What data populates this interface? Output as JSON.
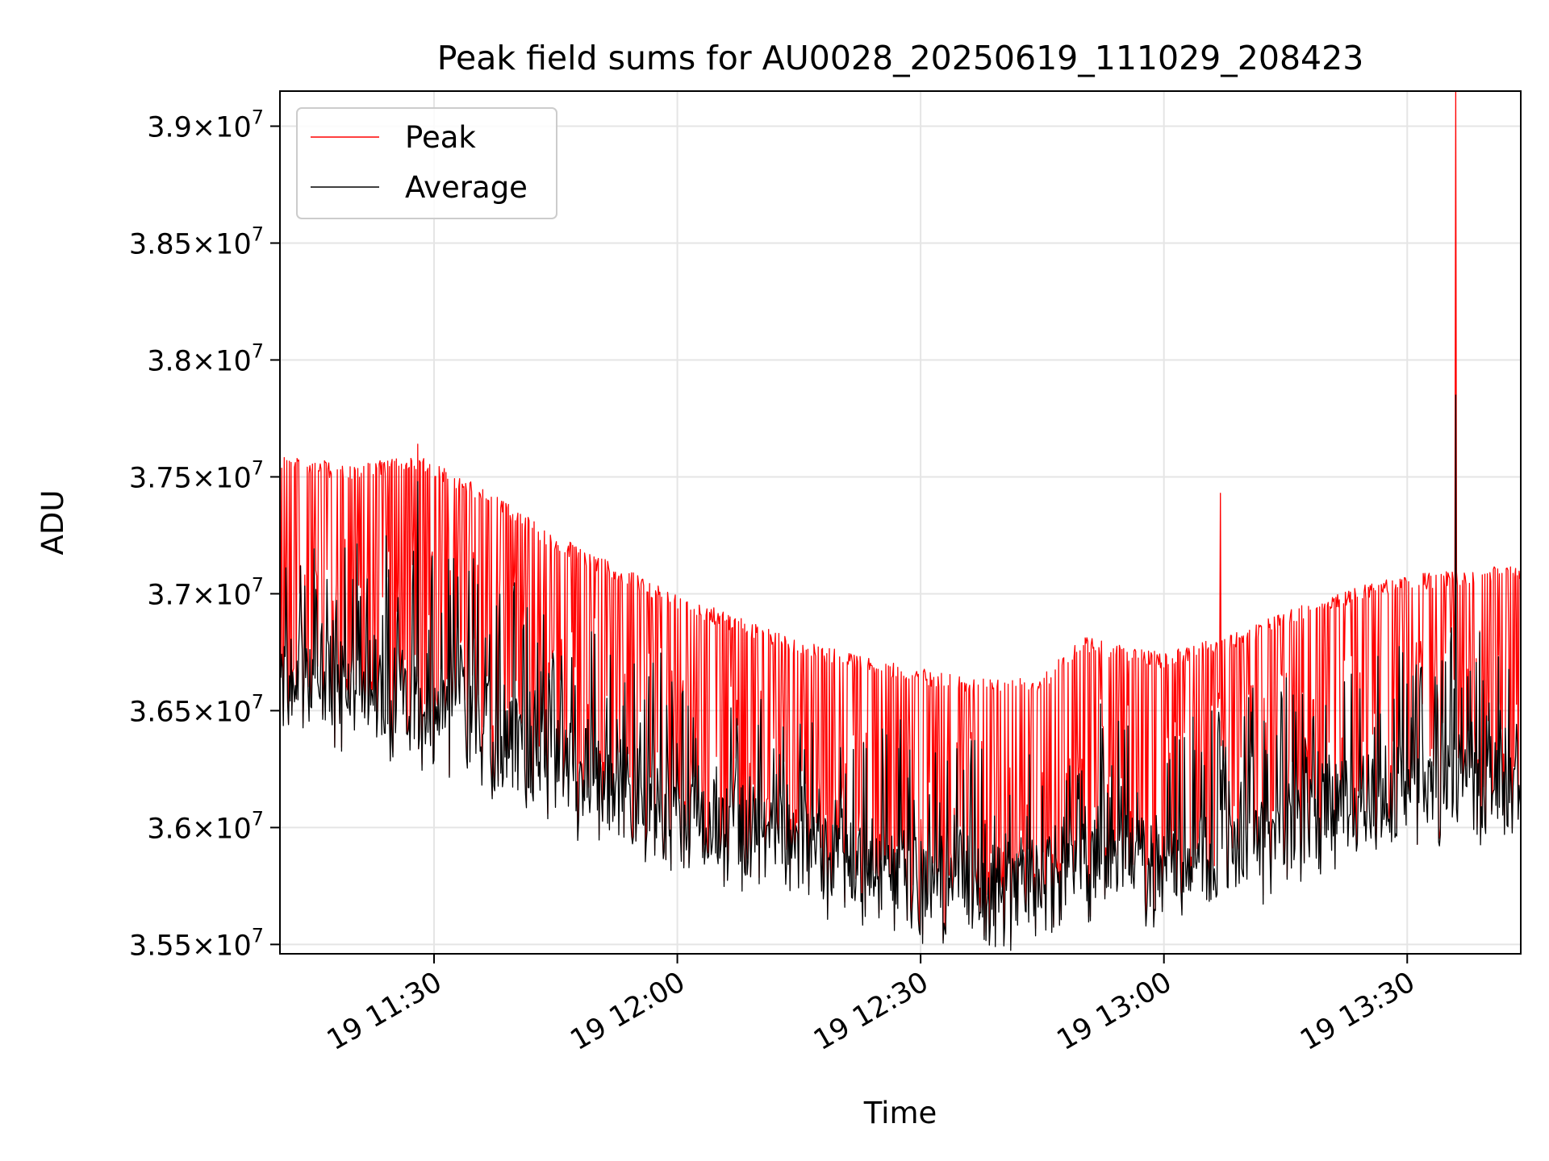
{
  "chart_data": {
    "type": "line",
    "title": "Peak field sums for AU0028_20250619_111029_208423",
    "xlabel": "Time",
    "ylabel": "ADU",
    "x_range": [
      "2025-06-19 11:11",
      "2025-06-19 13:44"
    ],
    "ylim": [
      35460000,
      39150000
    ],
    "x_ticks": [
      {
        "time": "2025-06-19 11:30",
        "label": "19 11:30"
      },
      {
        "time": "2025-06-19 12:00",
        "label": "19 12:00"
      },
      {
        "time": "2025-06-19 12:30",
        "label": "19 12:30"
      },
      {
        "time": "2025-06-19 13:00",
        "label": "19 13:00"
      },
      {
        "time": "2025-06-19 13:30",
        "label": "19 13:30"
      }
    ],
    "y_ticks": [
      {
        "value": 35500000,
        "mantissa": "3.55",
        "times": "×10",
        "exp": "7"
      },
      {
        "value": 36000000,
        "mantissa": "3.6",
        "times": "×10",
        "exp": "7"
      },
      {
        "value": 36500000,
        "mantissa": "3.65",
        "times": "×10",
        "exp": "7"
      },
      {
        "value": 37000000,
        "mantissa": "3.7",
        "times": "×10",
        "exp": "7"
      },
      {
        "value": 37500000,
        "mantissa": "3.75",
        "times": "×10",
        "exp": "7"
      },
      {
        "value": 38000000,
        "mantissa": "3.8",
        "times": "×10",
        "exp": "7"
      },
      {
        "value": 38500000,
        "mantissa": "3.85",
        "times": "×10",
        "exp": "7"
      },
      {
        "value": 39000000,
        "mantissa": "3.9",
        "times": "×10",
        "exp": "7"
      }
    ],
    "grid": true,
    "legend_position": "top-left",
    "series": [
      {
        "name": "Peak",
        "color": "#ff0000",
        "envelope_high": [
          {
            "time": "2025-06-19 11:11",
            "value": 37600000
          },
          {
            "time": "2025-06-19 11:20",
            "value": 37550000
          },
          {
            "time": "2025-06-19 11:28",
            "value": 37600000
          },
          {
            "time": "2025-06-19 11:35",
            "value": 37480000
          },
          {
            "time": "2025-06-19 11:45",
            "value": 37250000
          },
          {
            "time": "2025-06-19 12:00",
            "value": 37000000
          },
          {
            "time": "2025-06-19 12:15",
            "value": 36800000
          },
          {
            "time": "2025-06-19 12:30",
            "value": 36680000
          },
          {
            "time": "2025-06-19 12:38",
            "value": 36640000
          },
          {
            "time": "2025-06-19 12:45",
            "value": 36650000
          },
          {
            "time": "2025-06-19 12:50",
            "value": 36820000
          },
          {
            "time": "2025-06-19 13:00",
            "value": 36750000
          },
          {
            "time": "2025-06-19 13:10",
            "value": 36850000
          },
          {
            "time": "2025-06-19 13:20",
            "value": 37000000
          },
          {
            "time": "2025-06-19 13:30",
            "value": 37080000
          },
          {
            "time": "2025-06-19 13:44",
            "value": 37130000
          }
        ],
        "spikes": [
          {
            "time": "2025-06-19 11:28",
            "value": 37640000
          },
          {
            "time": "2025-06-19 13:07",
            "value": 37430000
          },
          {
            "time": "2025-06-19 13:36",
            "value": 39150000
          }
        ]
      },
      {
        "name": "Average",
        "color": "#000000",
        "envelope_low": [
          {
            "time": "2025-06-19 11:11",
            "value": 36380000
          },
          {
            "time": "2025-06-19 11:20",
            "value": 36320000
          },
          {
            "time": "2025-06-19 11:30",
            "value": 36250000
          },
          {
            "time": "2025-06-19 11:45",
            "value": 36000000
          },
          {
            "time": "2025-06-19 12:00",
            "value": 35820000
          },
          {
            "time": "2025-06-19 12:15",
            "value": 35650000
          },
          {
            "time": "2025-06-19 12:30",
            "value": 35530000
          },
          {
            "time": "2025-06-19 12:40",
            "value": 35480000
          },
          {
            "time": "2025-06-19 12:50",
            "value": 35620000
          },
          {
            "time": "2025-06-19 13:00",
            "value": 35580000
          },
          {
            "time": "2025-06-19 13:10",
            "value": 35650000
          },
          {
            "time": "2025-06-19 13:20",
            "value": 35820000
          },
          {
            "time": "2025-06-19 13:30",
            "value": 35900000
          },
          {
            "time": "2025-06-19 13:44",
            "value": 35950000
          }
        ],
        "spikes": [
          {
            "time": "2025-06-19 11:28",
            "value": 37480000
          },
          {
            "time": "2025-06-19 13:36",
            "value": 37850000
          }
        ]
      }
    ]
  }
}
